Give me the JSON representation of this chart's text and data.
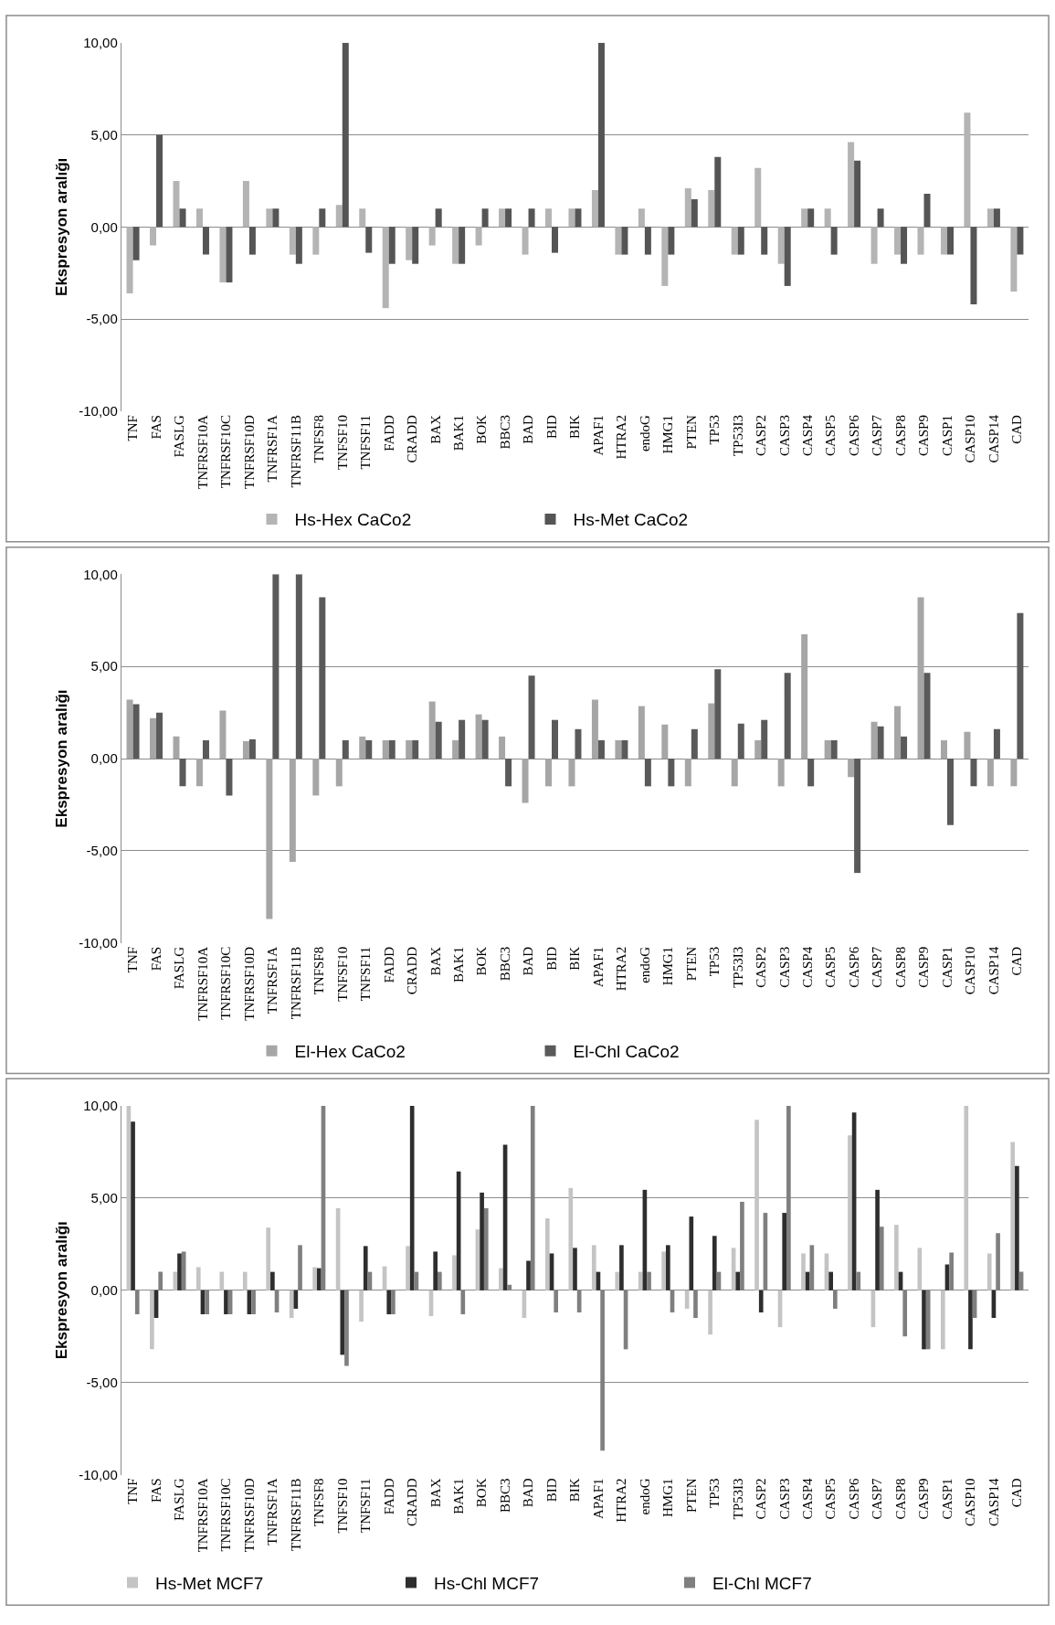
{
  "chart_data": [
    {
      "type": "bar",
      "ylabel": "Ekspresyon aralığı",
      "ylim": [
        -10,
        10
      ],
      "yticks": [
        {
          "value": -10,
          "label": "-10,00"
        },
        {
          "value": -5,
          "label": "-5,00"
        },
        {
          "value": 0,
          "label": "0,00"
        },
        {
          "value": 5,
          "label": "5,00"
        },
        {
          "value": 10,
          "label": "10,00"
        }
      ],
      "grid": "y",
      "legend": "bottom",
      "categories": [
        "TNF",
        "FAS",
        "FASLG",
        "TNFRSF10A",
        "TNFRSF10C",
        "TNFRSF10D",
        "TNFRSF1A",
        "TNFRSF11B",
        "TNFSF8",
        "TNFSF10",
        "TNFSF11",
        "FADD",
        "CRADD",
        "BAX",
        "BAK1",
        "BOK",
        "BBC3",
        "BAD",
        "BID",
        "BIK",
        "APAF1",
        "HTRA2",
        "endoG",
        "HMG1",
        "PTEN",
        "TP53",
        "TP53I3",
        "CASP2",
        "CASP3",
        "CASP4",
        "CASP5",
        "CASP6",
        "CASP7",
        "CASP8",
        "CASP9",
        "CASP1",
        "CASP10",
        "CASP14",
        "CAD"
      ],
      "series": [
        {
          "name": "Hs-Hex CaCo2",
          "color": "#b4b4b4",
          "values": [
            -3.6,
            -1.0,
            2.5,
            1.0,
            -3.0,
            2.5,
            1.0,
            -1.5,
            -1.5,
            1.2,
            1.0,
            -4.4,
            -1.8,
            -1.0,
            -2.0,
            -1.0,
            1.0,
            -1.5,
            1.0,
            1.0,
            2.0,
            -1.5,
            1.0,
            -3.2,
            2.1,
            2.0,
            -1.5,
            3.2,
            -2.0,
            1.0,
            1.0,
            4.6,
            -2.0,
            -1.5,
            -1.5,
            -1.5,
            6.2,
            1.0,
            -3.5
          ]
        },
        {
          "name": "Hs-Met CaCo2",
          "color": "#555555",
          "values": [
            -1.8,
            5.0,
            1.0,
            -1.5,
            -3.0,
            -1.5,
            1.0,
            -2.0,
            1.0,
            10,
            -1.4,
            -2.0,
            -2.0,
            1.0,
            -2.0,
            1.0,
            1.0,
            1.0,
            -1.4,
            1.0,
            10,
            -1.5,
            -1.5,
            -1.5,
            1.5,
            3.8,
            -1.5,
            -1.5,
            -3.2,
            1.0,
            -1.5,
            3.6,
            1.0,
            -2.0,
            1.8,
            -1.5,
            -4.2,
            1.0,
            -1.5
          ]
        }
      ]
    },
    {
      "type": "bar",
      "ylabel": "Ekspresyon aralığı",
      "ylim": [
        -10,
        10
      ],
      "yticks": [
        {
          "value": -10,
          "label": "-10,00"
        },
        {
          "value": -5,
          "label": "-5,00"
        },
        {
          "value": 0,
          "label": "0,00"
        },
        {
          "value": 5,
          "label": "5,00"
        },
        {
          "value": 10,
          "label": "10,00"
        }
      ],
      "grid": "y",
      "legend": "bottom",
      "categories": [
        "TNF",
        "FAS",
        "FASLG",
        "TNFRSF10A",
        "TNFRSF10C",
        "TNFRSF10D",
        "TNFRSF1A",
        "TNFRSF11B",
        "TNFSF8",
        "TNFSF10",
        "TNFSF11",
        "FADD",
        "CRADD",
        "BAX",
        "BAK1",
        "BOK",
        "BBC3",
        "BAD",
        "BID",
        "BIK",
        "APAF1",
        "HTRA2",
        "endoG",
        "HMG1",
        "PTEN",
        "TP53",
        "TP53I3",
        "CASP2",
        "CASP3",
        "CASP4",
        "CASP5",
        "CASP6",
        "CASP7",
        "CASP8",
        "CASP9",
        "CASP1",
        "CASP10",
        "CASP14",
        "CAD"
      ],
      "series": [
        {
          "name": "El-Hex CaCo2",
          "color": "#a6a6a6",
          "values": [
            3.2,
            2.2,
            1.2,
            -1.5,
            2.6,
            0.95,
            -8.7,
            -5.6,
            -2.0,
            -1.5,
            1.2,
            1.0,
            1.0,
            3.1,
            1.0,
            2.4,
            1.2,
            -2.4,
            -1.5,
            -1.5,
            3.2,
            1.0,
            2.85,
            1.85,
            -1.5,
            3.0,
            -1.5,
            1.0,
            -1.5,
            6.75,
            1.0,
            -1.0,
            2.0,
            2.85,
            8.75,
            1.0,
            1.45,
            -1.5,
            -1.5
          ]
        },
        {
          "name": "El-Chl CaCo2",
          "color": "#5a5a5a",
          "values": [
            2.95,
            2.5,
            -1.5,
            1.0,
            -2.0,
            1.05,
            10,
            10,
            8.75,
            1.0,
            1.0,
            1.0,
            1.0,
            2.0,
            2.1,
            2.1,
            -1.5,
            4.5,
            2.1,
            1.6,
            1.0,
            1.0,
            -1.5,
            -1.5,
            1.6,
            4.85,
            1.9,
            2.1,
            4.65,
            -1.5,
            1.0,
            -6.2,
            1.75,
            1.2,
            4.65,
            -3.6,
            -1.5,
            1.6,
            7.9
          ]
        }
      ]
    },
    {
      "type": "bar",
      "ylabel": "Ekspresyon aralığı",
      "ylim": [
        -10,
        10
      ],
      "yticks": [
        {
          "value": -10,
          "label": "-10,00"
        },
        {
          "value": -5,
          "label": "-5,00"
        },
        {
          "value": 0,
          "label": "0,00"
        },
        {
          "value": 5,
          "label": "5,00"
        },
        {
          "value": 10,
          "label": "10,00"
        }
      ],
      "grid": "y",
      "legend": "bottom",
      "categories": [
        "TNF",
        "FAS",
        "FASLG",
        "TNFRSF10A",
        "TNFRSF10C",
        "TNFRSF10D",
        "TNFRSF1A",
        "TNFRSF11B",
        "TNFSF8",
        "TNFSF10",
        "TNFSF11",
        "FADD",
        "CRADD",
        "BAX",
        "BAK1",
        "BOK",
        "BBC3",
        "BAD",
        "BID",
        "BIK",
        "APAF1",
        "HTRA2",
        "endoG",
        "HMG1",
        "PTEN",
        "TP53",
        "TP53I3",
        "CASP2",
        "CASP3",
        "CASP4",
        "CASP5",
        "CASP6",
        "CASP7",
        "CASP8",
        "CASP9",
        "CASP1",
        "CASP10",
        "CASP14",
        "CAD"
      ],
      "series": [
        {
          "name": "Hs-Met MCF7",
          "color": "#c4c4c4",
          "values": [
            10,
            -3.2,
            1.0,
            1.25,
            1.0,
            1.0,
            3.4,
            -1.5,
            1.25,
            4.45,
            -1.7,
            1.3,
            2.4,
            -1.4,
            1.9,
            3.3,
            1.2,
            -1.5,
            3.9,
            5.55,
            2.45,
            1.0,
            1.0,
            2.1,
            -1.0,
            -2.4,
            2.3,
            9.25,
            -2.0,
            2.0,
            2.0,
            8.4,
            -2.0,
            3.55,
            2.3,
            -3.2,
            10,
            2.0,
            8.05
          ]
        },
        {
          "name": "Hs-Chl MCF7",
          "color": "#2e2e2e",
          "values": [
            9.15,
            -1.5,
            2.0,
            -1.3,
            -1.3,
            -1.3,
            1.0,
            -1.0,
            1.2,
            -3.5,
            2.4,
            -1.3,
            10,
            2.1,
            6.45,
            5.3,
            7.9,
            1.6,
            2.0,
            2.3,
            1.0,
            2.45,
            5.45,
            2.45,
            4.0,
            2.95,
            1.0,
            -1.2,
            4.2,
            1.0,
            1.0,
            9.65,
            5.45,
            1.0,
            -3.2,
            1.4,
            -3.2,
            -1.5,
            6.75
          ]
        },
        {
          "name": "El-Chl MCF7",
          "color": "#7f7f7f",
          "values": [
            -1.3,
            1.0,
            2.1,
            -1.3,
            -1.3,
            -1.3,
            -1.2,
            2.45,
            10,
            -4.1,
            1.0,
            -1.3,
            1.0,
            1.0,
            -1.3,
            4.45,
            0.3,
            10,
            -1.2,
            -1.2,
            -8.7,
            -3.2,
            1.0,
            -1.2,
            -1.5,
            1.0,
            4.8,
            4.2,
            10,
            2.45,
            -1.0,
            1.0,
            3.45,
            -2.5,
            -3.2,
            2.05,
            -1.5,
            3.1,
            1.0
          ]
        }
      ]
    }
  ]
}
